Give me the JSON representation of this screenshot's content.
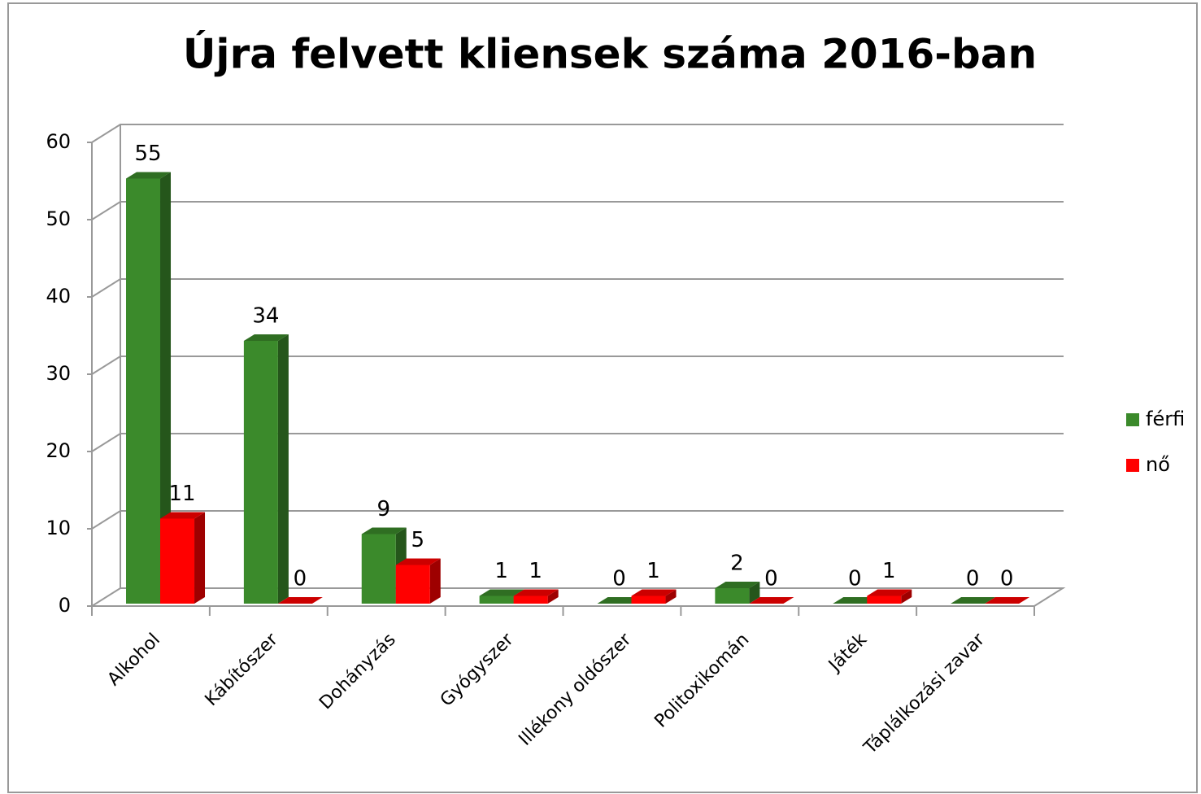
{
  "chart_data": {
    "type": "bar3d",
    "title": "Újra felvett kliensek száma 2016-ban",
    "categories": [
      "Alkohol",
      "Kábítószer",
      "Dohányzás",
      "Gyógyszer",
      "Illékony oldószer",
      "Politoxikomán",
      "Játék",
      "Táplálkozási zavar"
    ],
    "series": [
      {
        "name": "férfi",
        "color": "#3b8a2b",
        "values": [
          55,
          34,
          9,
          1,
          0,
          2,
          0,
          0
        ]
      },
      {
        "name": "nő",
        "color": "#ff0000",
        "values": [
          11,
          0,
          5,
          1,
          1,
          0,
          1,
          0
        ]
      }
    ],
    "ylim": [
      0,
      60
    ],
    "yticks": [
      0,
      10,
      20,
      30,
      40,
      50,
      60
    ],
    "grid": true,
    "legend": "right"
  }
}
